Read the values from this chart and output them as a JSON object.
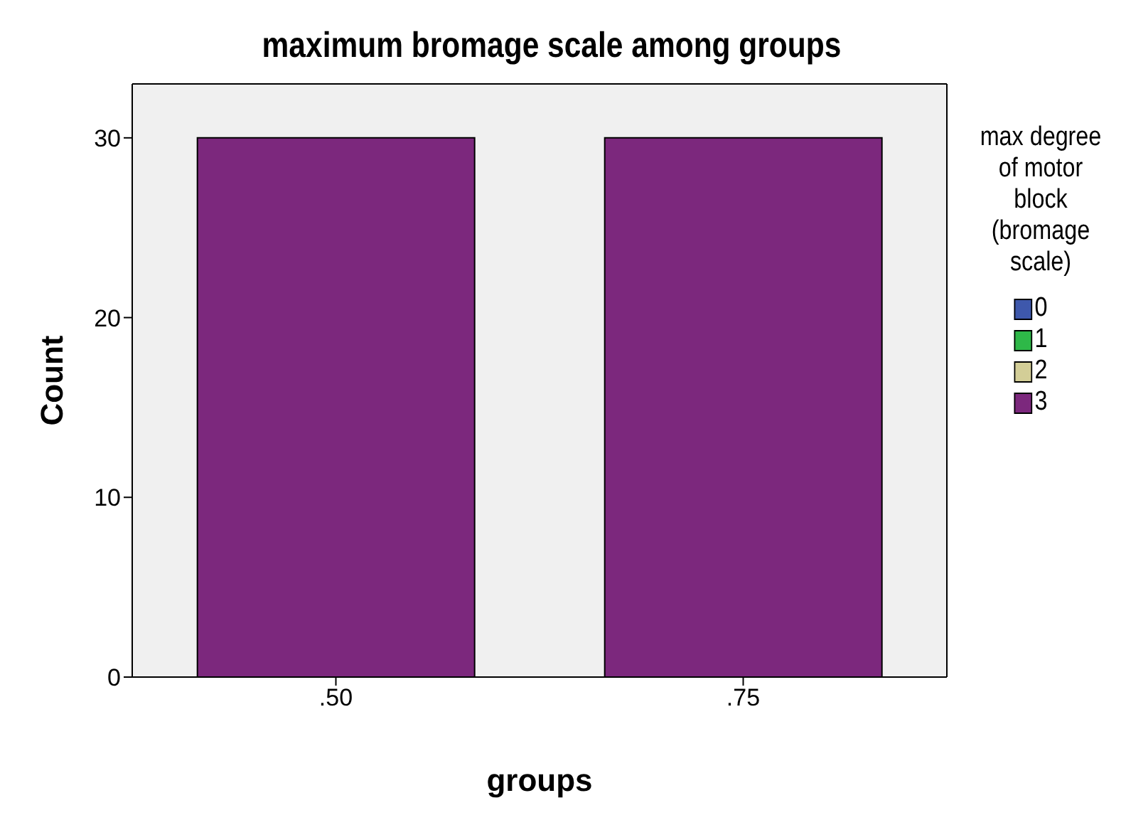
{
  "chart_data": {
    "type": "bar",
    "title": "maximum bromage scale among groups",
    "xlabel": "groups",
    "ylabel": "Count",
    "legend_title": "max degree of motor block (bromage scale)",
    "categories": [
      ".50",
      ".75"
    ],
    "stacked": true,
    "ylim": [
      0,
      33
    ],
    "yticks": [
      0,
      10,
      20,
      30
    ],
    "legend": "right",
    "series": [
      {
        "name": "0",
        "color": "#3e58ac",
        "values": [
          0,
          0
        ]
      },
      {
        "name": "1",
        "color": "#2eb848",
        "values": [
          0,
          0
        ]
      },
      {
        "name": "2",
        "color": "#d3ce97",
        "values": [
          0,
          0
        ]
      },
      {
        "name": "3",
        "color": "#7c287d",
        "values": [
          30,
          30
        ]
      }
    ]
  }
}
